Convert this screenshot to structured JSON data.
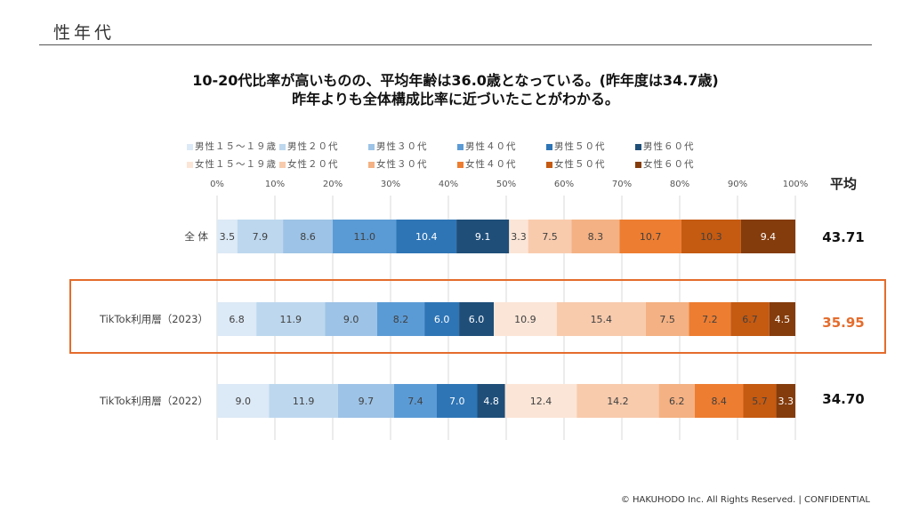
{
  "page_title": "性年代",
  "headline": {
    "line1": "10-20代比率が高いものの、平均年齢は36.0歳となっている。(昨年度は34.7歳)",
    "line2": "昨年よりも全体構成比率に近づいたことがわかる。"
  },
  "footer": "© HAKUHODO Inc. All Rights Reserved. | CONFIDENTIAL",
  "average_header": "平均",
  "chart_data": {
    "type": "bar",
    "orientation": "horizontal",
    "stacked": "percent",
    "categories": [
      "全 体",
      "TikTok利用層（2023）",
      "TikTok利用層（2022）"
    ],
    "averages": [
      "43.71",
      "35.95",
      "34.70"
    ],
    "highlight_category_index": 1,
    "xlim": [
      0,
      100
    ],
    "x_ticks": [
      "0%",
      "10%",
      "20%",
      "30%",
      "40%",
      "50%",
      "60%",
      "70%",
      "80%",
      "90%",
      "100%"
    ],
    "grid": true,
    "legend_position": "top",
    "series": [
      {
        "name": "男性１５～１９歳",
        "color": "#dce9f6",
        "values": [
          3.5,
          6.8,
          9.0
        ]
      },
      {
        "name": "男性２０代",
        "color": "#bdd7ee",
        "values": [
          7.9,
          11.9,
          11.9
        ]
      },
      {
        "name": "男性３０代",
        "color": "#9dc3e6",
        "values": [
          8.6,
          9.0,
          9.7
        ]
      },
      {
        "name": "男性４０代",
        "color": "#5b9bd5",
        "values": [
          11.0,
          8.2,
          7.4
        ]
      },
      {
        "name": "男性５０代",
        "color": "#2e75b6",
        "values": [
          10.4,
          6.0,
          7.0
        ]
      },
      {
        "name": "男性６０代",
        "color": "#1f4e79",
        "values": [
          9.1,
          6.0,
          4.8
        ]
      },
      {
        "name": "女性１５～１９歳",
        "color": "#fbe5d6",
        "values": [
          3.3,
          10.9,
          12.4
        ]
      },
      {
        "name": "女性２０代",
        "color": "#f8cbad",
        "values": [
          7.5,
          15.4,
          14.2
        ]
      },
      {
        "name": "女性３０代",
        "color": "#f4b183",
        "values": [
          8.3,
          7.5,
          6.2
        ]
      },
      {
        "name": "女性４０代",
        "color": "#ed7d31",
        "values": [
          10.7,
          7.2,
          8.4
        ]
      },
      {
        "name": "女性５０代",
        "color": "#c55a11",
        "values": [
          10.3,
          6.7,
          5.7
        ]
      },
      {
        "name": "女性６０代",
        "color": "#843c0c",
        "values": [
          9.4,
          4.5,
          3.3
        ]
      }
    ]
  }
}
